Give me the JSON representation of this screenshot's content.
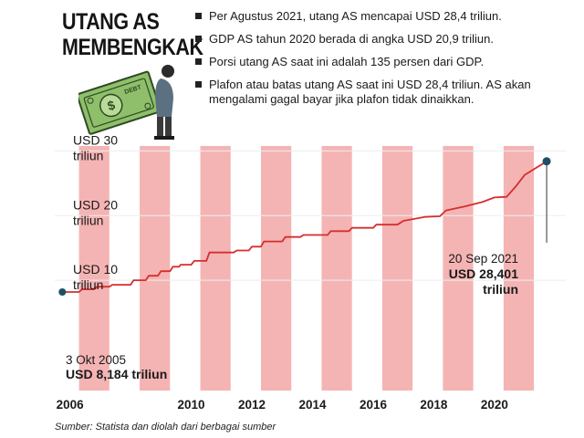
{
  "header": {
    "title_line1": "UTANG AS",
    "title_line2": "MEMBENGKAK",
    "bullets": [
      "Per Agustus 2021, utang AS mencapai USD 28,4 triliun.",
      "GDP AS tahun 2020 berada di angka USD 20,9 triliun.",
      "Porsi utang AS saat ini adalah 135 persen dari GDP.",
      "Plafon atau batas utang AS saat ini USD 28,4 triliun. AS akan mengalami gagal bayar jika plafon tidak dinaikkan."
    ]
  },
  "illustration": {
    "bill_label": "DEBT",
    "bill_symbol": "$"
  },
  "source": "Sumber: Statista dan diolah dari berbagai sumber",
  "colors": {
    "line": "#d62e2e",
    "band": "#f5b4b4",
    "marker": "#1f4e66",
    "grid": "#eeeeee",
    "money": "#8fbf6a"
  },
  "chart_data": {
    "type": "line",
    "xlim": [
      2005.5,
      2022.35
    ],
    "ylim": [
      0,
      35
    ],
    "grid": true,
    "x_ticks": [
      {
        "x": 2006,
        "label": "2006"
      },
      {
        "x": 2010,
        "label": "2010"
      },
      {
        "x": 2012,
        "label": "2012"
      },
      {
        "x": 2014,
        "label": "2014"
      },
      {
        "x": 2016,
        "label": "2016"
      },
      {
        "x": 2018,
        "label": "2018"
      },
      {
        "x": 2020,
        "label": "2020"
      }
    ],
    "y_ticks": [
      {
        "y": 10,
        "line1": "USD 10",
        "line2": "triliun"
      },
      {
        "y": 20,
        "line1": "USD 20",
        "line2": "triliun"
      },
      {
        "y": 30,
        "line1": "USD 30",
        "line2": "triliun"
      }
    ],
    "bands": [
      2006.3,
      2008.3,
      2010.3,
      2012.3,
      2014.3,
      2016.3,
      2018.3,
      2020.3
    ],
    "band_width": 1.0,
    "series": [
      {
        "points": [
          [
            2005.75,
            8.184
          ],
          [
            2006.3,
            8.184
          ],
          [
            2006.4,
            8.6
          ],
          [
            2006.8,
            8.6
          ],
          [
            2006.9,
            9.0
          ],
          [
            2007.3,
            9.0
          ],
          [
            2007.4,
            9.3
          ],
          [
            2008.0,
            9.3
          ],
          [
            2008.1,
            10.0
          ],
          [
            2008.5,
            10.0
          ],
          [
            2008.6,
            10.7
          ],
          [
            2008.9,
            10.7
          ],
          [
            2009.0,
            11.4
          ],
          [
            2009.3,
            11.4
          ],
          [
            2009.4,
            12.1
          ],
          [
            2009.6,
            12.1
          ],
          [
            2009.65,
            12.4
          ],
          [
            2010.0,
            12.4
          ],
          [
            2010.1,
            13.0
          ],
          [
            2010.5,
            13.0
          ],
          [
            2010.6,
            14.3
          ],
          [
            2011.4,
            14.3
          ],
          [
            2011.5,
            14.6
          ],
          [
            2011.9,
            14.6
          ],
          [
            2012.0,
            15.2
          ],
          [
            2012.3,
            15.2
          ],
          [
            2012.4,
            16.0
          ],
          [
            2013.0,
            16.0
          ],
          [
            2013.1,
            16.7
          ],
          [
            2013.6,
            16.7
          ],
          [
            2013.7,
            17.0
          ],
          [
            2014.5,
            17.0
          ],
          [
            2014.6,
            17.6
          ],
          [
            2015.2,
            17.6
          ],
          [
            2015.3,
            18.1
          ],
          [
            2016.0,
            18.1
          ],
          [
            2016.1,
            18.6
          ],
          [
            2016.8,
            18.6
          ],
          [
            2017.0,
            19.2
          ],
          [
            2017.7,
            19.8
          ],
          [
            2018.2,
            19.9
          ],
          [
            2018.4,
            20.8
          ],
          [
            2019.0,
            21.4
          ],
          [
            2019.6,
            22.1
          ],
          [
            2020.0,
            22.8
          ],
          [
            2020.4,
            22.9
          ],
          [
            2020.7,
            24.5
          ],
          [
            2021.0,
            26.3
          ],
          [
            2021.72,
            28.401
          ]
        ]
      }
    ],
    "annotations": [
      {
        "x": 2005.75,
        "y": 8.184,
        "date": "3 Okt 2005",
        "value": "USD 8,184 triliun"
      },
      {
        "x": 2021.72,
        "y": 28.401,
        "date": "20 Sep 2021",
        "value_line1": "USD 28,401",
        "value_line2": "triliun"
      }
    ]
  }
}
